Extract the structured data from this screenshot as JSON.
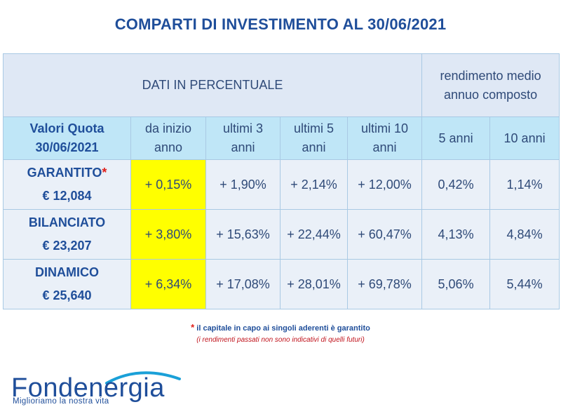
{
  "title": "COMPARTI DI INVESTIMENTO AL 30/06/2021",
  "table": {
    "header_top": {
      "left": "DATI IN PERCENTUALE",
      "right_line1": "rendimento medio",
      "right_line2": "annuo composto"
    },
    "header_cols": [
      {
        "l1": "Valori Quota",
        "l2": "30/06/2021"
      },
      {
        "l1": "da inizio",
        "l2": "anno"
      },
      {
        "l1": "ultimi 3",
        "l2": "anni"
      },
      {
        "l1": "ultimi 5",
        "l2": "anni"
      },
      {
        "l1": "ultimi 10",
        "l2": "anni"
      },
      {
        "l1": "5 anni",
        "l2": ""
      },
      {
        "l1": "10 anni",
        "l2": ""
      }
    ],
    "rows": [
      {
        "name": "GARANTITO",
        "star": "*",
        "value": "€ 12,084",
        "ytd": "+ 0,15%",
        "y3": "+ 1,90%",
        "y5": "+ 2,14%",
        "y10": "+ 12,00%",
        "c5": "0,42%",
        "c10": "1,14%"
      },
      {
        "name": "BILANCIATO",
        "star": "",
        "value": "€ 23,207",
        "ytd": "+ 3,80%",
        "y3": "+ 15,63%",
        "y5": "+ 22,44%",
        "y10": "+ 60,47%",
        "c5": "4,13%",
        "c10": "4,84%"
      },
      {
        "name": "DINAMICO",
        "star": "",
        "value": "€ 25,640",
        "ytd": "+ 6,34%",
        "y3": "+ 17,08%",
        "y5": "+ 28,01%",
        "y10": "+ 69,78%",
        "c5": "5,06%",
        "c10": "5,44%"
      }
    ]
  },
  "notes": {
    "star": "*",
    "guarantee": "il capitale in capo ai singoli aderenti è garantito",
    "disclaimer": "(i rendimenti passati non sono indicativi di quelli futuri)"
  },
  "logo": {
    "name": "Fondenergia",
    "tagline": "Miglioriamo la nostra vita",
    "icon": "arc-swoosh-icon"
  },
  "colors": {
    "title": "#1f4e9a",
    "highlight": "#ffff00",
    "header_bg": "#dfe8f5",
    "subheader_bg": "#bfe6f7",
    "star": "#e0201b"
  }
}
